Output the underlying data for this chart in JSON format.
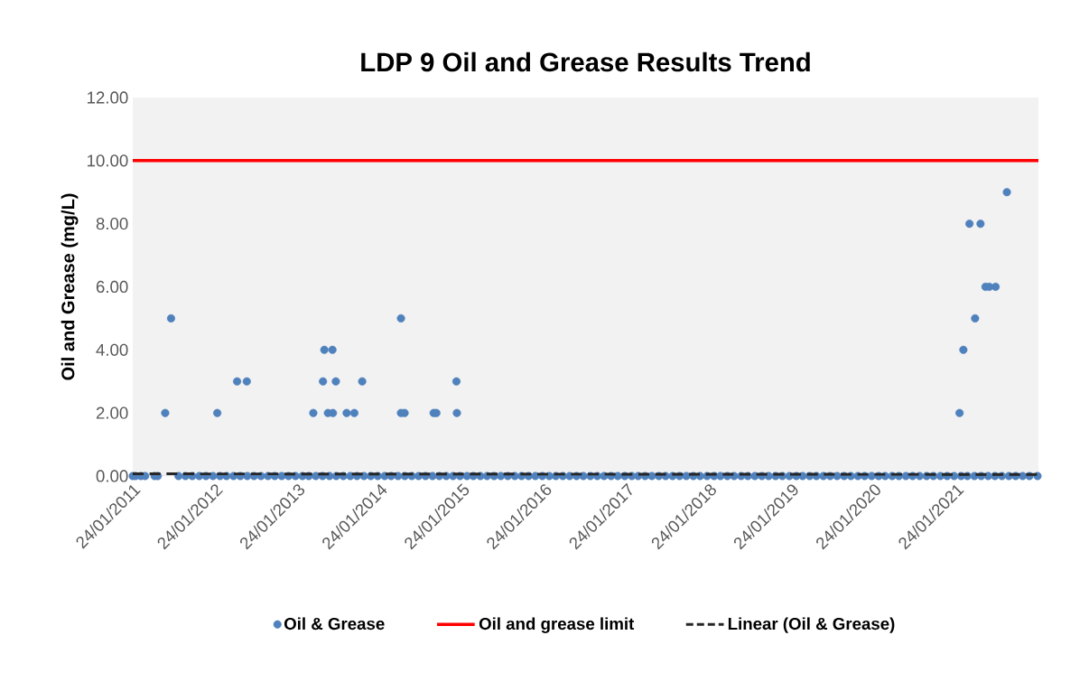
{
  "chart_data": {
    "type": "scatter",
    "title": "LDP 9 Oil and Grease Results Trend",
    "ylabel": "Oil and Grease (mg/L)",
    "xlim": [
      "2011-01-24",
      "2022-01-24"
    ],
    "xticks": [
      {
        "value": "2011-01-24",
        "label": "24/01/2011"
      },
      {
        "value": "2012-01-24",
        "label": "24/01/2012"
      },
      {
        "value": "2013-01-24",
        "label": "24/01/2013"
      },
      {
        "value": "2014-01-24",
        "label": "24/01/2014"
      },
      {
        "value": "2015-01-24",
        "label": "24/01/2015"
      },
      {
        "value": "2016-01-24",
        "label": "24/01/2016"
      },
      {
        "value": "2017-01-24",
        "label": "24/01/2017"
      },
      {
        "value": "2018-01-24",
        "label": "24/01/2018"
      },
      {
        "value": "2019-01-24",
        "label": "24/01/2019"
      },
      {
        "value": "2020-01-24",
        "label": "24/01/2020"
      },
      {
        "value": "2021-01-24",
        "label": "24/01/2021"
      }
    ],
    "ylim": [
      0,
      12
    ],
    "yticks": [
      {
        "value": 0,
        "label": "0.00"
      },
      {
        "value": 2,
        "label": "2.00"
      },
      {
        "value": 4,
        "label": "4.00"
      },
      {
        "value": 6,
        "label": "6.00"
      },
      {
        "value": 8,
        "label": "8.00"
      },
      {
        "value": 10,
        "label": "10.00"
      },
      {
        "value": 12,
        "label": "12.00"
      }
    ],
    "legend": "bottom",
    "series": [
      {
        "name": "Oil & Grease",
        "color": "#4f81bd",
        "marker": "circle",
        "x": [
          "2011-06-17",
          "2011-07-13",
          "2012-02-03",
          "2012-05-01",
          "2012-06-13",
          "2013-04-04",
          "2013-05-17",
          "2013-05-23",
          "2013-06-08",
          "2013-06-28",
          "2013-06-30",
          "2013-07-13",
          "2013-08-30",
          "2013-10-03",
          "2013-11-07",
          "2014-04-28",
          "2014-04-28",
          "2014-05-14",
          "2014-09-20",
          "2014-10-02",
          "2014-12-30",
          "2015-01-01",
          "2021-02-08",
          "2021-02-25",
          "2021-03-24",
          "2021-04-18",
          "2021-05-12",
          "2021-06-03",
          "2021-06-20",
          "2021-07-18",
          "2021-09-06",
          "2011-01-24",
          "2011-02-05",
          "2011-03-01",
          "2011-03-20",
          "2011-05-01",
          "2011-05-15",
          "2011-08-15",
          "2011-09-15",
          "2011-10-15",
          "2011-11-15",
          "2011-12-15",
          "2012-01-15",
          "2012-02-15",
          "2012-03-15",
          "2012-04-15",
          "2012-05-15",
          "2012-06-15",
          "2012-07-15",
          "2012-08-15",
          "2012-09-15",
          "2012-10-15",
          "2012-11-15",
          "2012-12-15",
          "2013-01-15",
          "2013-02-15",
          "2013-03-15",
          "2013-04-15",
          "2013-05-15",
          "2013-06-15",
          "2013-07-15",
          "2013-08-15",
          "2013-09-15",
          "2013-10-15",
          "2013-11-15",
          "2013-12-15",
          "2014-01-15",
          "2014-02-15",
          "2014-03-15",
          "2014-04-15",
          "2014-05-15",
          "2014-06-15",
          "2014-07-15",
          "2014-08-15",
          "2014-09-15",
          "2014-10-15",
          "2014-11-15",
          "2014-12-15",
          "2015-01-15",
          "2015-02-15",
          "2015-03-15",
          "2015-04-15",
          "2015-05-15",
          "2015-06-15",
          "2015-07-15",
          "2015-08-15",
          "2015-09-15",
          "2015-10-15",
          "2015-11-15",
          "2015-12-15",
          "2016-01-15",
          "2016-02-15",
          "2016-03-15",
          "2016-04-15",
          "2016-05-15",
          "2016-06-15",
          "2016-07-15",
          "2016-08-15",
          "2016-09-15",
          "2016-10-15",
          "2016-11-15",
          "2016-12-15",
          "2017-01-15",
          "2017-02-15",
          "2017-03-15",
          "2017-04-15",
          "2017-05-15",
          "2017-06-15",
          "2017-07-15",
          "2017-08-15",
          "2017-09-15",
          "2017-10-15",
          "2017-11-15",
          "2017-12-15",
          "2018-01-15",
          "2018-02-15",
          "2018-03-15",
          "2018-04-15",
          "2018-05-15",
          "2018-06-15",
          "2018-07-15",
          "2018-08-15",
          "2018-09-15",
          "2018-10-15",
          "2018-11-15",
          "2018-12-15",
          "2019-01-15",
          "2019-02-15",
          "2019-03-15",
          "2019-04-15",
          "2019-05-15",
          "2019-06-15",
          "2019-07-15",
          "2019-08-15",
          "2019-09-15",
          "2019-10-15",
          "2019-11-15",
          "2019-12-15",
          "2020-01-15",
          "2020-02-15",
          "2020-03-15",
          "2020-04-15",
          "2020-05-15",
          "2020-06-15",
          "2020-07-15",
          "2020-08-15",
          "2020-09-15",
          "2020-10-15",
          "2020-11-15",
          "2020-12-15",
          "2021-01-15",
          "2021-02-15",
          "2021-03-15",
          "2021-04-15",
          "2021-05-15",
          "2021-06-15",
          "2021-07-15",
          "2021-08-15",
          "2021-09-15",
          "2021-10-15",
          "2021-11-15",
          "2021-12-15",
          "2022-01-20"
        ],
        "values": [
          2,
          5,
          2,
          3,
          3,
          2,
          3,
          4,
          2,
          4,
          2,
          3,
          2,
          2,
          3,
          5,
          2,
          2,
          2,
          2,
          3,
          2,
          2,
          4,
          8,
          5,
          8,
          6,
          6,
          6,
          9,
          0,
          0,
          0,
          0,
          0,
          0,
          0,
          0,
          0,
          0,
          0,
          0,
          0,
          0,
          0,
          0,
          0,
          0,
          0,
          0,
          0,
          0,
          0,
          0,
          0,
          0,
          0,
          0,
          0,
          0,
          0,
          0,
          0,
          0,
          0,
          0,
          0,
          0,
          0,
          0,
          0,
          0,
          0,
          0,
          0,
          0,
          0,
          0,
          0,
          0,
          0,
          0,
          0,
          0,
          0,
          0,
          0,
          0,
          0,
          0,
          0,
          0,
          0,
          0,
          0,
          0,
          0,
          0,
          0,
          0,
          0,
          0,
          0,
          0,
          0,
          0,
          0,
          0,
          0,
          0,
          0,
          0,
          0,
          0,
          0,
          0,
          0,
          0,
          0,
          0,
          0,
          0,
          0,
          0,
          0,
          0,
          0,
          0,
          0,
          0,
          0,
          0,
          0,
          0,
          0,
          0,
          0,
          0,
          0,
          0,
          0,
          0,
          0,
          0,
          0,
          0,
          0,
          0,
          0,
          0,
          0,
          0,
          0,
          0,
          0,
          0,
          0,
          0,
          0,
          0,
          0,
          0
        ]
      },
      {
        "name": "Linear (Oil & Grease)",
        "type": "line",
        "line_style": "dashed",
        "marker": "none",
        "color": "#262626",
        "x": [
          "2011-01-24",
          "2022-01-24"
        ],
        "values": [
          0.07,
          0.05
        ]
      }
    ],
    "ref_lines": [
      {
        "axis": "y",
        "value": 10,
        "label": "Oil and grease limit",
        "color": "#ff0000"
      }
    ]
  }
}
